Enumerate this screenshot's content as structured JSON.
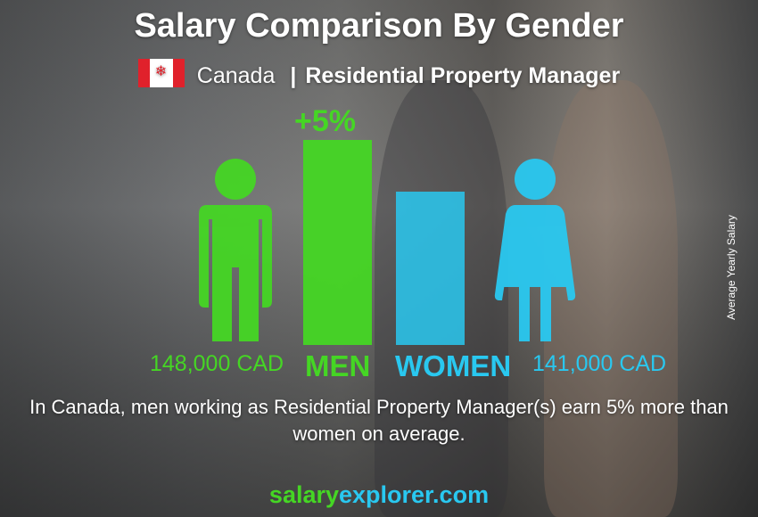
{
  "header": {
    "title": "Salary Comparison By Gender",
    "country": "Canada",
    "separator": "|",
    "job": "Residential Property Manager",
    "flag_icon": "canada-flag"
  },
  "chart_data": {
    "type": "bar",
    "categories": [
      "MEN",
      "WOMEN"
    ],
    "values": [
      148000,
      141000
    ],
    "value_labels": [
      "148,000 CAD",
      "141,000 CAD"
    ],
    "unit": "CAD",
    "difference_label": "+5%",
    "ylabel": "Average Yearly Salary",
    "colors": {
      "men": "#45d624",
      "women": "#29c8f0"
    }
  },
  "description": "In Canada, men working as Residential Property Manager(s) earn 5% more than women on average.",
  "brand": {
    "part1": "salary",
    "part2": "explorer.com"
  }
}
